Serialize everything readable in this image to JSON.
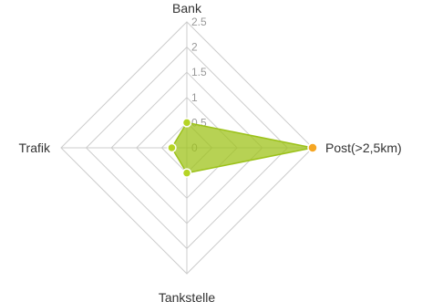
{
  "chart_data": {
    "type": "radar",
    "axes": [
      "Bank",
      "Post(>2,5km)",
      "Tankstelle",
      "Trafik"
    ],
    "rlim": [
      0,
      2.5
    ],
    "ticks": [
      "0",
      "0.5",
      "1",
      "1.5",
      "2",
      "2.5"
    ],
    "series": [
      {
        "values": [
          0.5,
          2.5,
          0.5,
          0.3
        ]
      }
    ],
    "grid": true,
    "legend": "none"
  },
  "colors": {
    "fill": "#9fc31b",
    "stroke": "#9cc21a",
    "point": "#b5d425",
    "highlight_point": "#f5a623",
    "grid": "#cccccc",
    "axis_text": "#333333",
    "tick_text": "#999999"
  }
}
